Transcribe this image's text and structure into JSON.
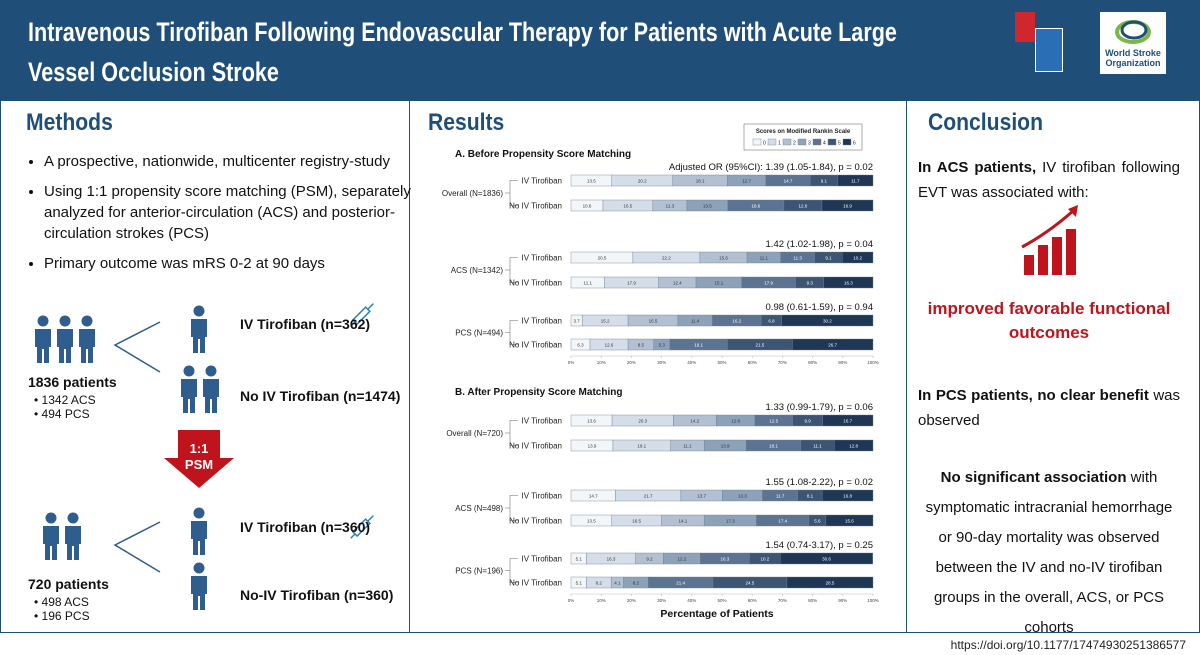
{
  "header": {
    "title": "Intravenous Tirofiban Following Endovascular Therapy for Patients with Acute Large Vessel Occlusion Stroke",
    "logo_text": "World Stroke Organization"
  },
  "methods": {
    "heading": "Methods",
    "bullets": [
      "A prospective, nationwide, multicenter registry-study",
      "Using 1:1 propensity score matching (PSM), separately analyzed for anterior-circulation (ACS) and posterior-circulation strokes (PCS)",
      "Primary outcome was mRS 0-2 at 90 days"
    ],
    "cohort_before": {
      "total": "1836 patients",
      "subgroups": [
        "1342 ACS",
        "494 PCS"
      ],
      "arms": [
        "IV Tirofiban (n=362)",
        "No IV Tirofiban (n=1474)"
      ]
    },
    "matching": [
      "1:1",
      "PSM"
    ],
    "cohort_after": {
      "total": "720 patients",
      "subgroups": [
        "498 ACS",
        "196 PCS"
      ],
      "arms": [
        "IV Tirofiban (n=360)",
        "No-IV Tirofiban (n=360)"
      ]
    }
  },
  "results": {
    "heading": "Results"
  },
  "chart_data": [
    {
      "type": "bar",
      "orientation": "horizontal",
      "stacked": true,
      "title": "A. Before Propensity Score Matching",
      "legend_title": "Scores on Modified Rankin Scale",
      "categories": [
        "IV Tirofiban",
        "No IV Tirofiban",
        "IV Tirofiban",
        "No IV Tirofiban",
        "IV Tirofiban",
        "No IV Tirofiban"
      ],
      "groups": [
        {
          "label": "Overall (N=1836)",
          "annotation": "Adjusted OR (95%CI): 1.39 (1.05-1.84), p = 0.02"
        },
        {
          "label": "ACS (N=1342)",
          "annotation": "1.42 (1.02-1.98), p = 0.04"
        },
        {
          "label": "PCS (N=494)",
          "annotation": "0.98 (0.61-1.59), p = 0.94"
        }
      ],
      "series": [
        {
          "name": "0",
          "color": "#f3f6f9",
          "values": [
            13.5,
            10.6,
            20.5,
            11.1,
            3.7,
            6.3
          ]
        },
        {
          "name": "1",
          "color": "#d5dee8",
          "values": [
            20.2,
            16.5,
            22.2,
            17.9,
            15.2,
            12.6
          ]
        },
        {
          "name": "2",
          "color": "#b2c0d1",
          "values": [
            18.1,
            11.3,
            15.6,
            12.4,
            16.5,
            8.5
          ]
        },
        {
          "name": "3",
          "color": "#8da1b8",
          "values": [
            12.7,
            13.5,
            11.1,
            15.1,
            11.4,
            5.3
          ]
        },
        {
          "name": "4",
          "color": "#5c7491",
          "values": [
            14.7,
            18.6,
            11.3,
            17.9,
            16.2,
            19.1
          ]
        },
        {
          "name": "5",
          "color": "#3d5573",
          "values": [
            9.1,
            12.6,
            9.1,
            9.3,
            6.8,
            21.5
          ]
        },
        {
          "name": "6",
          "color": "#1f3654",
          "values": [
            11.7,
            16.9,
            10.2,
            16.3,
            30.2,
            26.7
          ]
        }
      ],
      "xlim": [
        0,
        100
      ],
      "xticks": [
        {
          "value": 0,
          "label": "0%"
        },
        {
          "value": 10,
          "label": "10%"
        },
        {
          "value": 20,
          "label": "20%"
        },
        {
          "value": 30,
          "label": "30%"
        },
        {
          "value": 40,
          "label": "40%"
        },
        {
          "value": 50,
          "label": "50%"
        },
        {
          "value": 60,
          "label": "60%"
        },
        {
          "value": 70,
          "label": "70%"
        },
        {
          "value": 80,
          "label": "80%"
        },
        {
          "value": 90,
          "label": "90%"
        },
        {
          "value": 100,
          "label": "100%"
        }
      ]
    },
    {
      "type": "bar",
      "orientation": "horizontal",
      "stacked": true,
      "title": "B. After Propensity Score Matching",
      "x_label": "Percentage of Patients",
      "categories": [
        "IV Tirofiban",
        "No IV Tirofiban",
        "IV Tirofiban",
        "No IV Tirofiban",
        "IV Tirofiban",
        "No IV Tirofiban"
      ],
      "groups": [
        {
          "label": "Overall (N=720)",
          "annotation": "1.33 (0.99-1.79), p = 0.06"
        },
        {
          "label": "ACS (N=498)",
          "annotation": "1.55 (1.08-2.22), p = 0.02"
        },
        {
          "label": "PCS (N=196)",
          "annotation": "1.54 (0.74-3.17), p = 0.25"
        }
      ],
      "series": [
        {
          "color": "#f3f6f9",
          "values": [
            13.6,
            13.9,
            14.7,
            13.5,
            5.1,
            5.1
          ]
        },
        {
          "color": "#d5dee8",
          "values": [
            20.3,
            19.1,
            21.7,
            16.5,
            16.3,
            8.2
          ]
        },
        {
          "color": "#b2c0d1",
          "values": [
            14.2,
            11.1,
            13.7,
            14.1,
            9.2,
            4.1
          ]
        },
        {
          "color": "#8da1b8",
          "values": [
            12.8,
            13.9,
            13.3,
            17.3,
            12.2,
            8.2
          ]
        },
        {
          "color": "#5c7491",
          "values": [
            12.5,
            18.1,
            11.7,
            17.4,
            16.3,
            21.4
          ]
        },
        {
          "color": "#3d5573",
          "values": [
            9.9,
            11.1,
            8.1,
            5.6,
            10.2,
            24.5
          ]
        },
        {
          "color": "#1f3654",
          "values": [
            16.7,
            12.8,
            16.8,
            15.6,
            30.6,
            28.5
          ]
        }
      ],
      "xlim": [
        0,
        100
      ],
      "xticks": [
        {
          "value": 0,
          "label": "0%"
        },
        {
          "value": 10,
          "label": "10%"
        },
        {
          "value": 20,
          "label": "20%"
        },
        {
          "value": 30,
          "label": "30%"
        },
        {
          "value": 40,
          "label": "40%"
        },
        {
          "value": 50,
          "label": "50%"
        },
        {
          "value": 60,
          "label": "60%"
        },
        {
          "value": 70,
          "label": "70%"
        },
        {
          "value": 80,
          "label": "80%"
        },
        {
          "value": 90,
          "label": "90%"
        },
        {
          "value": 100,
          "label": "100%"
        }
      ]
    }
  ],
  "conclusion": {
    "heading": "Conclusion",
    "paragraphs": [
      {
        "bold": "In ACS patients,",
        "text": " IV tirofiban following EVT was associated with:"
      },
      {
        "highlight": "improved favorable functional outcomes"
      },
      {
        "bold": "In PCS patients, no clear benefit",
        "text": " was observed"
      },
      {
        "bold": "No significant association",
        "text": " with symptomatic intracranial hemorrhage or 90-day mortality was observed between the IV and no-IV tirofiban groups in the overall, ACS, or PCS cohorts"
      }
    ]
  },
  "doi": "https://doi.org/10.1177/17474930251386577"
}
